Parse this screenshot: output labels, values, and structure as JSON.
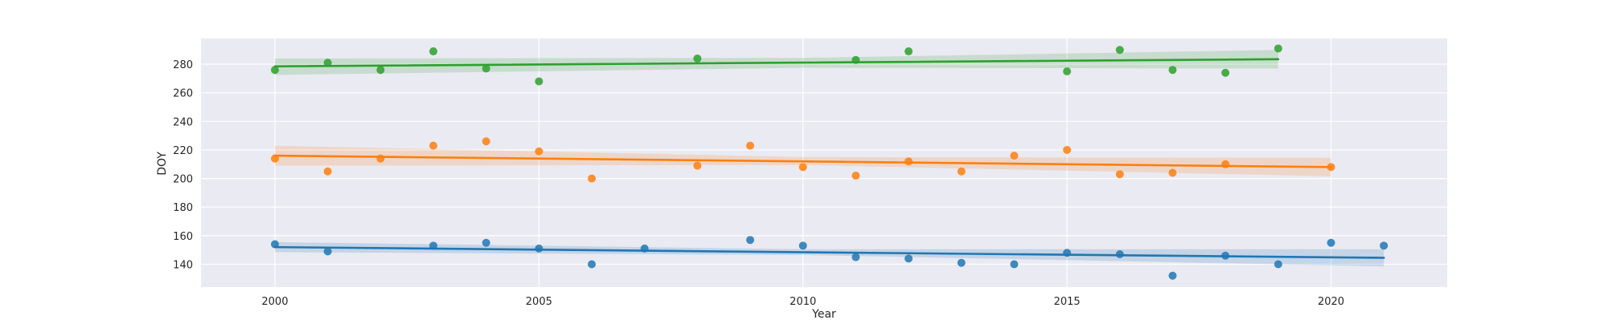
{
  "chart_data": {
    "type": "scatter",
    "title": "",
    "xlabel": "Year",
    "ylabel": "DOY",
    "xlim": [
      1998.6,
      2022.2
    ],
    "ylim": [
      124,
      298
    ],
    "xticks": [
      2000,
      2005,
      2010,
      2015,
      2020
    ],
    "yticks": [
      140,
      160,
      180,
      200,
      220,
      240,
      260,
      280
    ],
    "grid": true,
    "style": "seaborn-darkgrid",
    "series": [
      {
        "color": "#1f77b4",
        "points": [
          [
            2000,
            154
          ],
          [
            2001,
            149
          ],
          [
            2003,
            153
          ],
          [
            2004,
            155
          ],
          [
            2005,
            151
          ],
          [
            2006,
            140
          ],
          [
            2007,
            151
          ],
          [
            2009,
            157
          ],
          [
            2010,
            153
          ],
          [
            2011,
            145
          ],
          [
            2012,
            144
          ],
          [
            2013,
            141
          ],
          [
            2014,
            140
          ],
          [
            2015,
            148
          ],
          [
            2016,
            147
          ],
          [
            2017,
            132
          ],
          [
            2018,
            146
          ],
          [
            2019,
            140
          ],
          [
            2020,
            155
          ],
          [
            2021,
            153
          ]
        ],
        "trend": {
          "x": [
            2000,
            2021
          ],
          "y": [
            152,
            144.5
          ]
        },
        "ci": {
          "x": [
            2000,
            2010,
            2021
          ],
          "lower": [
            148.5,
            146.5,
            138.5
          ],
          "upper": [
            155.5,
            150.5,
            150.5
          ]
        }
      },
      {
        "color": "#ff7f0e",
        "points": [
          [
            2000,
            214
          ],
          [
            2001,
            205
          ],
          [
            2002,
            214
          ],
          [
            2003,
            223
          ],
          [
            2004,
            226
          ],
          [
            2005,
            219
          ],
          [
            2006,
            200
          ],
          [
            2008,
            209
          ],
          [
            2009,
            223
          ],
          [
            2010,
            208
          ],
          [
            2011,
            202
          ],
          [
            2012,
            212
          ],
          [
            2013,
            205
          ],
          [
            2014,
            216
          ],
          [
            2015,
            220
          ],
          [
            2016,
            203
          ],
          [
            2017,
            204
          ],
          [
            2018,
            210
          ],
          [
            2020,
            208
          ]
        ],
        "trend": {
          "x": [
            2000,
            2020
          ],
          "y": [
            216,
            208
          ]
        },
        "ci": {
          "x": [
            2000,
            2010,
            2020
          ],
          "lower": [
            209,
            209.5,
            201.5
          ],
          "upper": [
            223,
            215,
            214.5
          ]
        }
      },
      {
        "color": "#2ca02c",
        "points": [
          [
            2000,
            276
          ],
          [
            2001,
            281
          ],
          [
            2002,
            276
          ],
          [
            2003,
            289
          ],
          [
            2004,
            277
          ],
          [
            2005,
            268
          ],
          [
            2008,
            284
          ],
          [
            2011,
            283
          ],
          [
            2012,
            289
          ],
          [
            2015,
            275
          ],
          [
            2016,
            290
          ],
          [
            2017,
            276
          ],
          [
            2018,
            274
          ],
          [
            2019,
            291
          ]
        ],
        "trend": {
          "x": [
            2000,
            2019
          ],
          "y": [
            278.5,
            283.5
          ]
        },
        "ci": {
          "x": [
            2000,
            2010,
            2019
          ],
          "lower": [
            272.5,
            277.5,
            277
          ],
          "upper": [
            284,
            284.5,
            290
          ]
        }
      }
    ]
  }
}
